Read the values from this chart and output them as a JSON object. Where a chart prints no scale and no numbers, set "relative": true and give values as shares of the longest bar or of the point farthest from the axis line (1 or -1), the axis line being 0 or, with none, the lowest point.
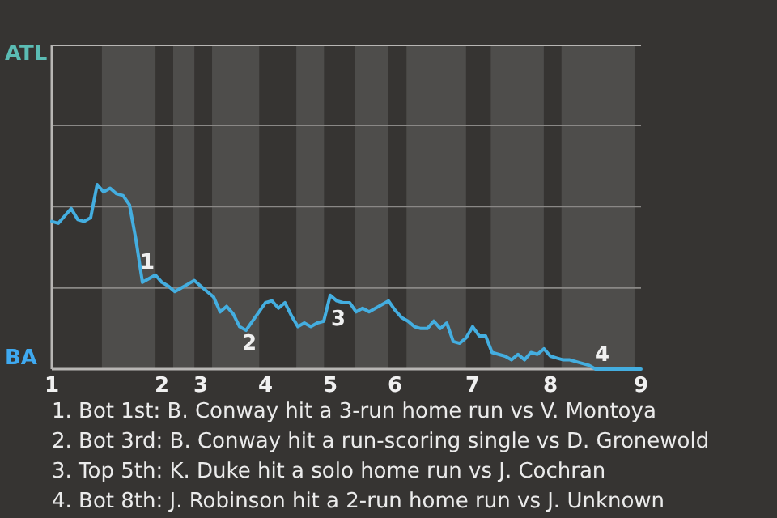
{
  "chart_data": {
    "type": "line",
    "relative": true,
    "marker": "none",
    "categories": [
      "1",
      null,
      null,
      null,
      null,
      null,
      null,
      null,
      null,
      null,
      null,
      null,
      null,
      null,
      null,
      null,
      null,
      "2",
      null,
      null,
      null,
      null,
      null,
      "3",
      null,
      null,
      null,
      null,
      null,
      null,
      null,
      null,
      null,
      "4",
      null,
      null,
      null,
      null,
      null,
      null,
      null,
      null,
      null,
      "5",
      null,
      null,
      null,
      null,
      null,
      null,
      null,
      null,
      null,
      "6",
      null,
      null,
      null,
      null,
      null,
      null,
      null,
      null,
      null,
      null,
      null,
      "7",
      null,
      null,
      null,
      null,
      null,
      null,
      null,
      null,
      null,
      null,
      null,
      "8",
      null,
      null,
      null,
      null,
      null,
      null,
      null,
      null,
      null,
      null,
      null,
      null,
      null,
      "9"
    ],
    "series": [
      {
        "color": "#44aee0",
        "values": [
          0.8,
          0.79,
          0.83,
          0.87,
          0.81,
          0.8,
          0.82,
          1,
          0.96,
          0.98,
          0.95,
          0.94,
          0.89,
          0.7,
          0.47,
          0.49,
          0.51,
          0.47,
          0.45,
          0.42,
          0.44,
          0.46,
          0.48,
          0.45,
          0.42,
          0.39,
          0.31,
          0.34,
          0.3,
          0.23,
          0.21,
          0.26,
          0.31,
          0.36,
          0.37,
          0.33,
          0.36,
          0.29,
          0.23,
          0.25,
          0.23,
          0.25,
          0.26,
          0.4,
          0.37,
          0.36,
          0.36,
          0.31,
          0.33,
          0.31,
          0.33,
          0.35,
          0.37,
          0.32,
          0.28,
          0.26,
          0.23,
          0.22,
          0.22,
          0.26,
          0.22,
          0.25,
          0.15,
          0.14,
          0.17,
          0.23,
          0.18,
          0.18,
          0.09,
          0.08,
          0.07,
          0.05,
          0.08,
          0.05,
          0.09,
          0.08,
          0.11,
          0.07,
          0.06,
          0.05,
          0.05,
          0.04,
          0.03,
          0.02,
          0,
          0,
          0,
          0,
          0,
          0,
          0,
          0
        ]
      }
    ],
    "ref_lines": [
      {
        "axis": "y",
        "value": 0.44,
        "color": "#8a8886"
      },
      {
        "axis": "y",
        "value": 0.88,
        "color": "#8a8886"
      },
      {
        "axis": "y",
        "value": 1.32,
        "color": "#8a8886"
      }
    ],
    "annotations": [
      "ATL",
      "BA",
      "1",
      "2",
      "3",
      "4",
      "1. Bot 1st: B. Conway hit a 3-run home run vs V. Montoya",
      "2. Bot 3rd: B. Conway hit a run-scoring single vs D. Gronewold",
      "3. Top 5th: K. Duke hit a solo home run vs J. Cochran",
      "4. Bot 8th: J. Robinson hit a 2-run home run vs J. Unknown"
    ]
  }
}
